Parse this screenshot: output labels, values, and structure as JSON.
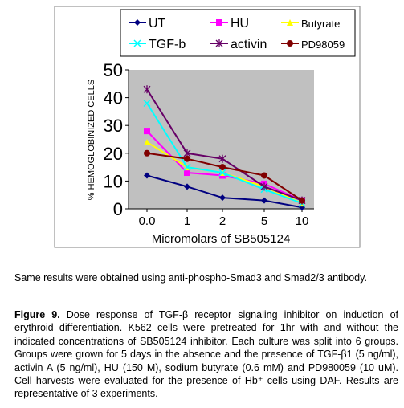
{
  "chart_data": {
    "type": "line",
    "categories": [
      "0.0",
      "1",
      "2",
      "5",
      "10"
    ],
    "xlabel": "Micromolars of SB505124",
    "ylabel": "% HEMOGLOBINIZED CELLS",
    "ylim": [
      0,
      50
    ],
    "yticks": [
      "0",
      "10",
      "20",
      "30",
      "40",
      "50"
    ],
    "grid": false,
    "legend_position": "top",
    "plot_background": "#c0c0c0",
    "series": [
      {
        "name": "UT",
        "values": [
          12,
          8,
          4,
          3,
          0.5
        ],
        "color": "#000080",
        "marker": "diamond"
      },
      {
        "name": "HU",
        "values": [
          28,
          13,
          12,
          9,
          3
        ],
        "color": "#ff00ff",
        "marker": "square"
      },
      {
        "name": "Butyrate",
        "values": [
          24,
          15,
          13,
          8,
          2
        ],
        "color": "#ffff00",
        "marker": "triangle"
      },
      {
        "name": "TGF-b",
        "values": [
          38,
          15,
          13,
          7,
          2
        ],
        "color": "#00ffff",
        "marker": "x"
      },
      {
        "name": "activin",
        "values": [
          43,
          20,
          18,
          8,
          3
        ],
        "color": "#660066",
        "marker": "star"
      },
      {
        "name": "PD98059",
        "values": [
          20,
          18,
          15,
          12,
          3
        ],
        "color": "#800000",
        "marker": "circle"
      }
    ]
  },
  "note": "Same results were obtained using anti-phospho-Smad3 and Smad2/3 antibody.",
  "caption": {
    "label": "Figure 9.",
    "text": " Dose response of TGF-β receptor signaling inhibitor on induction of erythroid differentiation. K562 cells were pretreated for 1hr with and without the indicated concentrations of SB505124 inhibitor. Each culture was split into 6 groups. Groups were grown for 5 days in the absence and the presence of TGF-β1 (5 ng/ml), activin A (5 ng/ml), HU (150 M), sodium butyrate (0.6 mM) and PD980059 (10 uM). Cell harvests were evaluated for the presence of Hb⁺ cells using DAF. Results are representative of 3 experiments."
  }
}
